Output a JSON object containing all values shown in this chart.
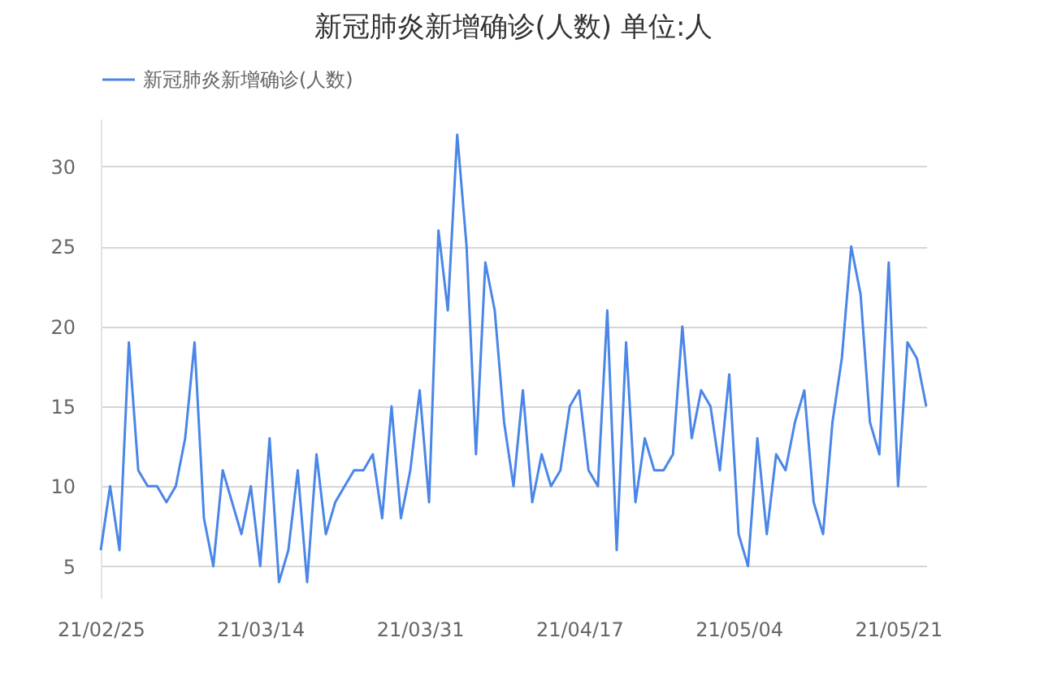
{
  "chart_data": {
    "type": "line",
    "title": "新冠肺炎新增确诊(人数) 单位:人",
    "x": [
      "--02-25",
      "--02-26",
      "--02-27",
      "--02-28",
      "--03-01",
      "--03-02",
      "--03-03",
      "--03-04",
      "--03-05",
      "--03-06",
      "--03-07",
      "--03-08",
      "--03-09",
      "--03-10",
      "--03-11",
      "--03-12",
      "--03-13",
      "--03-14",
      "--03-15",
      "--03-16",
      "--03-17",
      "--03-18",
      "--03-19",
      "--03-20",
      "--03-21",
      "--03-22",
      "--03-23",
      "--03-24",
      "--03-25",
      "--03-26",
      "--03-27",
      "--03-28",
      "--03-29",
      "--03-30",
      "--03-31",
      "--04-01",
      "--04-02",
      "--04-03",
      "--04-04",
      "--04-05",
      "--04-06",
      "--04-07",
      "--04-08",
      "--04-09",
      "--04-10",
      "--04-11",
      "--04-12",
      "--04-13",
      "--04-14",
      "--04-15",
      "--04-16",
      "--04-17",
      "--04-18",
      "--04-19",
      "--04-20",
      "--04-21",
      "--04-22",
      "--04-23",
      "--04-24",
      "--04-25",
      "--04-26",
      "--04-27",
      "--04-28",
      "--04-29",
      "--04-30",
      "--05-01",
      "--05-02",
      "--05-03",
      "--05-04",
      "--05-05",
      "--05-06",
      "--05-07",
      "--05-08",
      "--05-09",
      "--05-10",
      "--05-11",
      "--05-12",
      "--05-13",
      "--05-14",
      "--05-15",
      "--05-16",
      "--05-17",
      "--05-18",
      "--05-19",
      "--05-20",
      "--05-21",
      "--05-22",
      "--05-23",
      "--05-24"
    ],
    "series": [
      {
        "name": "新冠肺炎新增确诊(人数)",
        "color": "#4a86e8",
        "values": [
          6,
          10,
          6,
          19,
          11,
          10,
          10,
          9,
          10,
          13,
          19,
          8,
          5,
          11,
          9,
          7,
          10,
          5,
          13,
          4,
          6,
          11,
          4,
          12,
          7,
          9,
          10,
          11,
          11,
          12,
          8,
          15,
          8,
          11,
          16,
          9,
          26,
          21,
          32,
          25,
          12,
          24,
          21,
          14,
          10,
          16,
          9,
          12,
          10,
          11,
          15,
          16,
          11,
          10,
          21,
          6,
          19,
          9,
          13,
          11,
          11,
          12,
          20,
          13,
          16,
          15,
          11,
          17,
          7,
          5,
          13,
          7,
          12,
          11,
          14,
          16,
          9,
          7,
          14,
          18,
          25,
          22,
          14,
          12,
          24,
          10,
          19,
          18,
          15
        ]
      }
    ],
    "xlim": [
      "--02-25",
      "--05-24"
    ],
    "xticks": [
      {
        "value": "--02-25",
        "label": "21/02/25"
      },
      {
        "value": "--03-14",
        "label": "21/03/14"
      },
      {
        "value": "--03-31",
        "label": "21/03/31"
      },
      {
        "value": "--04-17",
        "label": "21/04/17"
      },
      {
        "value": "--05-04",
        "label": "21/05/04"
      },
      {
        "value": "--05-21",
        "label": "21/05/21"
      }
    ],
    "ylim": [
      3,
      33
    ],
    "yticks": [
      5,
      10,
      15,
      20,
      25,
      30
    ],
    "grid": "y",
    "legend": "top left",
    "marker": "none",
    "line_style": "solid"
  }
}
